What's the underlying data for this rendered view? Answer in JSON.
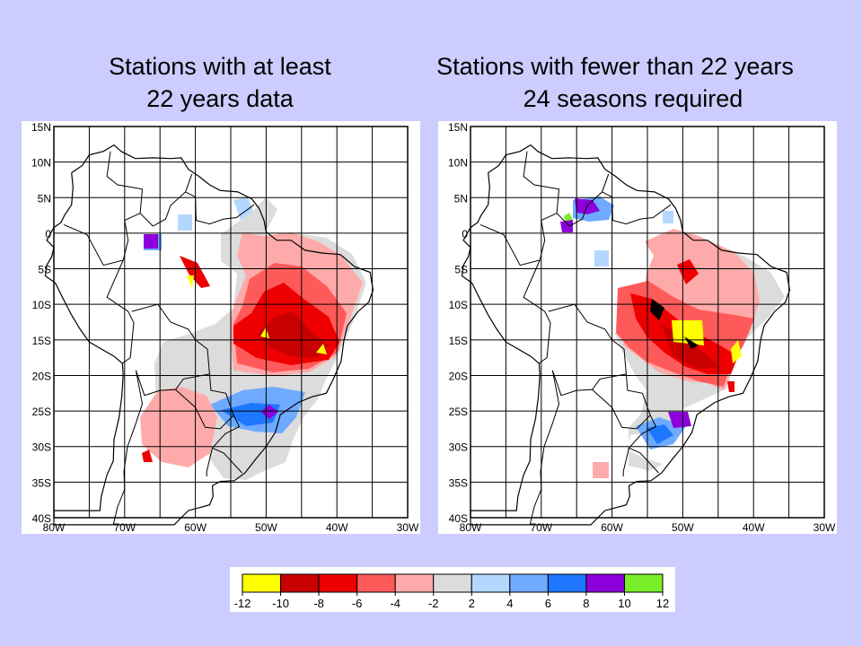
{
  "slide": {
    "background": "#ccccff"
  },
  "maps": [
    {
      "id": "left",
      "title_lines": [
        "Stations with at least",
        "22 years data"
      ]
    },
    {
      "id": "right",
      "title_lines": [
        "Stations with fewer than 22 years",
        "24 seasons required"
      ]
    }
  ],
  "axes": {
    "lat_labels": [
      "15N",
      "10N",
      "5N",
      "0",
      "5S",
      "10S",
      "15S",
      "20S",
      "25S",
      "30S",
      "35S",
      "40S"
    ],
    "lon_labels": [
      "80W",
      "70W",
      "60W",
      "50W",
      "40W",
      "30W"
    ],
    "lon_range": [
      -80,
      -30
    ],
    "lat_range": [
      -40,
      15
    ],
    "grid_step_degrees": 5
  },
  "colorbar": {
    "tick_labels": [
      "-12",
      "-10",
      "-8",
      "-6",
      "-4",
      "-2",
      "2",
      "4",
      "6",
      "8",
      "10",
      "12"
    ],
    "bins": [
      {
        "from": -12,
        "to": -10,
        "color": "#ffff00"
      },
      {
        "from": -10,
        "to": -8,
        "color": "#c80000"
      },
      {
        "from": -8,
        "to": -6,
        "color": "#ee0000"
      },
      {
        "from": -6,
        "to": -4,
        "color": "#ff5a5a"
      },
      {
        "from": -4,
        "to": -2,
        "color": "#ffaaaa"
      },
      {
        "from": -2,
        "to": 2,
        "color": "#dcdcdc"
      },
      {
        "from": 2,
        "to": 4,
        "color": "#b4d7ff"
      },
      {
        "from": 4,
        "to": 6,
        "color": "#6eaaff"
      },
      {
        "from": 6,
        "to": 8,
        "color": "#1e78ff"
      },
      {
        "from": 8,
        "to": 10,
        "color": "#8c00dc"
      },
      {
        "from": 10,
        "to": 12,
        "color": "#78ee28"
      }
    ]
  }
}
